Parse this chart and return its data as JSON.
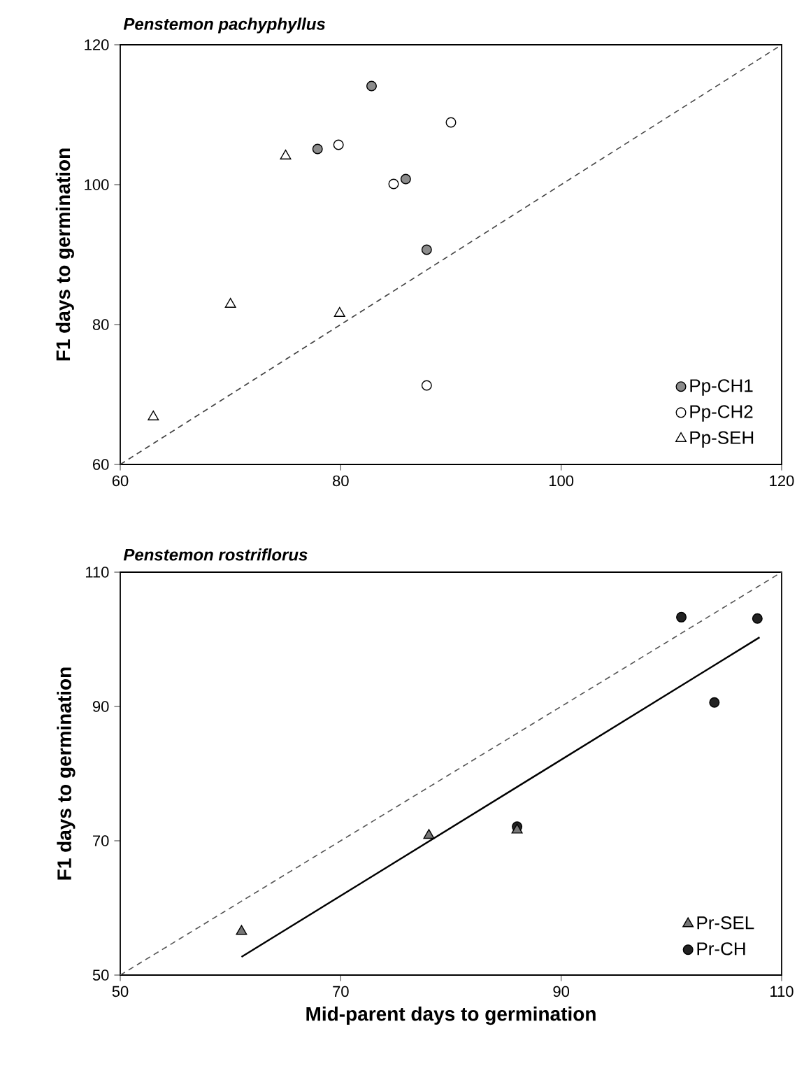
{
  "chart_data": [
    {
      "type": "scatter",
      "title": "Penstemon pachyphyllus",
      "ylabel": "F1 days to germination",
      "xlim": [
        60,
        120
      ],
      "ylim": [
        60,
        120
      ],
      "xticks": [
        60,
        80,
        100,
        120
      ],
      "yticks": [
        60,
        80,
        100,
        120
      ],
      "legend": "bottom right",
      "grid": false,
      "series": [
        {
          "type": "line",
          "line_style": "dashed",
          "marker": "none",
          "color": "#444444",
          "x": [
            60,
            120
          ],
          "values": [
            60,
            120
          ]
        },
        {
          "name": "Pp-CH1",
          "marker": "circle",
          "color": "#8c8c8c",
          "x": [
            82.8,
            77.9,
            85.9,
            87.8
          ],
          "values": [
            114.1,
            105.1,
            100.8,
            90.7
          ]
        },
        {
          "name": "Pp-CH2",
          "marker": "circle",
          "color": "#ffffff",
          "x": [
            79.8,
            90.0,
            84.8,
            87.8
          ],
          "values": [
            105.7,
            108.9,
            100.1,
            71.3
          ]
        },
        {
          "name": "Pp-SEH",
          "marker": "triangle",
          "color": "#ffffff",
          "x": [
            75,
            70,
            79.9,
            63
          ],
          "values": [
            104.1,
            82.9,
            81.6,
            66.8
          ]
        }
      ]
    },
    {
      "type": "scatter",
      "title": "Penstemon rostriflorus",
      "xlabel": "Mid-parent days to germination",
      "ylabel": "F1 days to germination",
      "xlim": [
        50,
        110
      ],
      "ylim": [
        50,
        110
      ],
      "xticks": [
        50,
        70,
        90,
        110
      ],
      "yticks": [
        50,
        70,
        90,
        110
      ],
      "legend": "bottom right",
      "grid": false,
      "series": [
        {
          "type": "line",
          "line_style": "dashed",
          "marker": "none",
          "color": "#555555",
          "x": [
            50,
            110
          ],
          "values": [
            50,
            110
          ]
        },
        {
          "type": "line",
          "line_style": "solid",
          "marker": "none",
          "color": "#000000",
          "x": [
            61,
            108
          ],
          "values": [
            52.7,
            100.3
          ]
        },
        {
          "name": "Pr-SEL",
          "marker": "triangle",
          "color": "#777777",
          "x": [
            61.0,
            78.0,
            86.0
          ],
          "values": [
            56.5,
            70.8,
            71.6
          ]
        },
        {
          "name": "Pr-CH",
          "marker": "circle",
          "color": "#222222",
          "x": [
            86.0,
            100.9,
            107.8,
            103.9
          ],
          "values": [
            72.1,
            103.3,
            103.1,
            90.6
          ]
        }
      ]
    }
  ]
}
